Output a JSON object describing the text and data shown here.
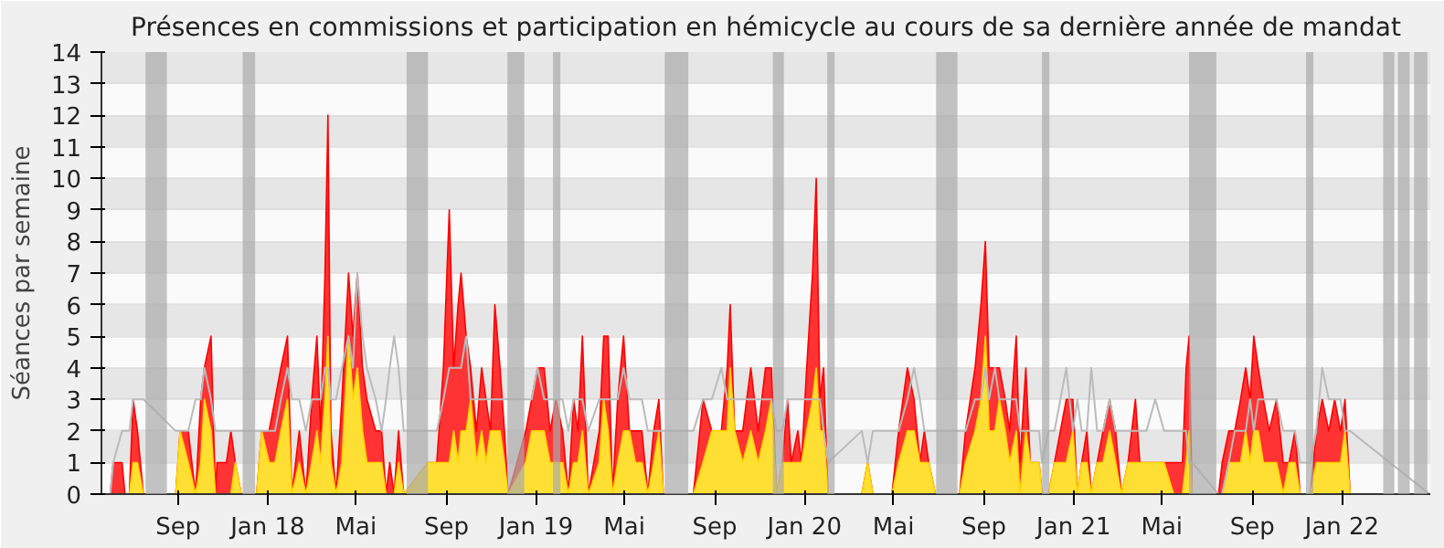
{
  "chart_data": {
    "type": "area",
    "title": "Présences en commissions et participation en hémicycle au cours de sa dernière année de mandat",
    "ylabel": "Séances par semaine",
    "x": [
      "2017-06-01",
      "2017-06-05",
      "2017-06-17",
      "2017-06-21",
      "2017-06-27",
      "2017-07-02",
      "2017-07-08",
      "2017-07-16",
      "2017-08-29",
      "2017-09-04",
      "2017-09-15",
      "2017-09-25",
      "2017-10-02",
      "2017-10-07",
      "2017-10-16",
      "2017-10-22",
      "2017-10-24",
      "2017-11-06",
      "2017-11-12",
      "2017-11-18",
      "2017-11-26",
      "2017-12-17",
      "2017-12-24",
      "2018-01-03",
      "2018-01-11",
      "2018-01-19",
      "2018-01-28",
      "2018-02-03",
      "2018-02-13",
      "2018-02-22",
      "2018-03-02",
      "2018-03-09",
      "2018-03-14",
      "2018-03-20",
      "2018-03-24",
      "2018-03-28",
      "2018-04-04",
      "2018-04-12",
      "2018-04-21",
      "2018-04-27",
      "2018-05-03",
      "2018-05-10",
      "2018-05-16",
      "2018-05-28",
      "2018-06-05",
      "2018-06-11",
      "2018-06-16",
      "2018-06-22",
      "2018-06-28",
      "2018-07-05",
      "2018-08-07",
      "2018-08-19",
      "2018-08-28",
      "2018-09-05",
      "2018-09-11",
      "2018-09-17",
      "2018-09-21",
      "2018-09-28",
      "2018-10-04",
      "2018-10-12",
      "2018-10-19",
      "2018-10-25",
      "2018-10-31",
      "2018-11-06",
      "2018-11-13",
      "2018-11-19",
      "2018-11-24",
      "2018-12-18",
      "2018-12-26",
      "2019-01-03",
      "2019-01-12",
      "2019-01-20",
      "2019-01-28",
      "2019-02-06",
      "2019-02-14",
      "2019-02-21",
      "2019-02-27",
      "2019-03-05",
      "2019-03-13",
      "2019-03-28",
      "2019-04-03",
      "2019-04-09",
      "2019-04-15",
      "2019-04-22",
      "2019-04-30",
      "2019-05-08",
      "2019-05-16",
      "2019-05-25",
      "2019-06-02",
      "2019-06-10",
      "2019-06-17",
      "2019-06-23",
      "2019-08-03",
      "2019-08-16",
      "2019-08-28",
      "2019-09-10",
      "2019-09-18",
      "2019-09-22",
      "2019-09-28",
      "2019-10-09",
      "2019-10-20",
      "2019-10-30",
      "2019-11-09",
      "2019-11-17",
      "2019-11-24",
      "2019-12-02",
      "2019-12-09",
      "2019-12-14",
      "2019-12-23",
      "2019-12-28",
      "2020-01-04",
      "2020-01-12",
      "2020-01-17",
      "2020-01-22",
      "2020-01-27",
      "2020-02-02",
      "2020-03-19",
      "2020-03-27",
      "2020-04-03",
      "2020-04-29",
      "2020-05-08",
      "2020-05-20",
      "2020-05-29",
      "2020-06-06",
      "2020-06-12",
      "2020-06-18",
      "2020-06-27",
      "2020-07-30",
      "2020-08-07",
      "2020-08-20",
      "2020-08-28",
      "2020-09-03",
      "2020-09-08",
      "2020-09-16",
      "2020-09-22",
      "2020-09-30",
      "2020-10-06",
      "2020-10-15",
      "2020-10-20",
      "2020-10-28",
      "2020-11-03",
      "2020-11-15",
      "2020-11-19",
      "2020-11-28",
      "2020-12-06",
      "2020-12-14",
      "2020-12-22",
      "2020-12-31",
      "2021-01-06",
      "2021-01-12",
      "2021-01-19",
      "2021-01-25",
      "2021-02-02",
      "2021-02-10",
      "2021-02-19",
      "2021-02-27",
      "2021-03-07",
      "2021-03-16",
      "2021-03-26",
      "2021-04-01",
      "2021-04-10",
      "2021-04-22",
      "2021-05-04",
      "2021-05-17",
      "2021-05-29",
      "2021-06-03",
      "2021-06-07",
      "2021-06-11",
      "2021-07-17",
      "2021-07-22",
      "2021-07-31",
      "2021-08-08",
      "2021-08-16",
      "2021-08-23",
      "2021-08-29",
      "2021-09-03",
      "2021-09-09",
      "2021-09-16",
      "2021-09-24",
      "2021-10-04",
      "2021-10-13",
      "2021-10-21",
      "2021-10-29",
      "2021-11-05",
      "2021-11-19",
      "2021-11-27",
      "2021-12-05",
      "2021-12-14",
      "2021-12-22",
      "2021-12-30",
      "2022-01-05",
      "2022-01-12",
      "2022-04-30"
    ],
    "series": [
      {
        "color": "#ff0000",
        "values": [
          0,
          1,
          1,
          0,
          0,
          3,
          2,
          0,
          0,
          2,
          2,
          0,
          3,
          4,
          5,
          0,
          1,
          1,
          2,
          1,
          0,
          0,
          2,
          2,
          3,
          4,
          5,
          0,
          2,
          0,
          3,
          5,
          2,
          7,
          12,
          2,
          0,
          3,
          7,
          5,
          7,
          4,
          3,
          2,
          2,
          0,
          1,
          0,
          2,
          0,
          1,
          1,
          4,
          9,
          4,
          6,
          7,
          5,
          4,
          2,
          4,
          3,
          2,
          6,
          4,
          2,
          0,
          2,
          3,
          4,
          4,
          2,
          3,
          2,
          0,
          3,
          2,
          5,
          0,
          2,
          5,
          5,
          0,
          3,
          5,
          2,
          2,
          2,
          0,
          2,
          3,
          0,
          0,
          3,
          2,
          2,
          4,
          6,
          2,
          2,
          4,
          2,
          4,
          4,
          0,
          1,
          3,
          1,
          2,
          1,
          4,
          7,
          10,
          3,
          4,
          0,
          0,
          1,
          0,
          0,
          2,
          4,
          3,
          1,
          2,
          1,
          0,
          0,
          2,
          4,
          6,
          8,
          4,
          4,
          4,
          3,
          2,
          5,
          1,
          4,
          1,
          1,
          0,
          0,
          1,
          2,
          3,
          3,
          0,
          1,
          2,
          0,
          1,
          2,
          3,
          2,
          0,
          1,
          3,
          1,
          1,
          1,
          1,
          1,
          1,
          4,
          5,
          0,
          0,
          1,
          2,
          2,
          3,
          4,
          3,
          5,
          4,
          3,
          2,
          3,
          1,
          1,
          2,
          0,
          0,
          2,
          3,
          2,
          3,
          2,
          3,
          0,
          0
        ]
      },
      {
        "color": "#ffd700",
        "values": [
          0,
          0,
          0,
          0,
          0,
          1,
          1,
          0,
          0,
          2,
          1,
          0,
          1,
          3,
          2,
          0,
          0,
          0,
          0,
          1,
          0,
          0,
          2,
          1,
          1,
          2,
          3,
          0,
          1,
          0,
          1,
          2,
          1,
          3,
          5,
          1,
          0,
          1,
          5,
          3,
          4,
          2,
          1,
          1,
          1,
          0,
          0,
          0,
          1,
          0,
          1,
          1,
          1,
          1,
          2,
          1,
          2,
          2,
          3,
          1,
          2,
          1,
          2,
          2,
          2,
          1,
          0,
          1,
          2,
          2,
          2,
          1,
          1,
          1,
          0,
          1,
          1,
          2,
          0,
          1,
          3,
          2,
          0,
          1,
          2,
          2,
          1,
          1,
          0,
          1,
          2,
          0,
          0,
          1,
          2,
          2,
          2,
          4,
          2,
          1,
          2,
          1,
          2,
          3,
          0,
          1,
          1,
          1,
          1,
          1,
          2,
          3,
          4,
          2,
          2,
          0,
          0,
          1,
          0,
          0,
          1,
          2,
          2,
          1,
          1,
          1,
          0,
          0,
          1,
          2,
          3,
          5,
          2,
          2,
          3,
          2,
          1,
          2,
          0,
          2,
          1,
          1,
          0,
          0,
          1,
          1,
          1,
          2,
          0,
          1,
          1,
          0,
          1,
          1,
          2,
          1,
          0,
          1,
          1,
          1,
          1,
          1,
          1,
          0,
          0,
          1,
          2,
          0,
          0,
          0,
          1,
          1,
          1,
          2,
          1,
          2,
          2,
          1,
          1,
          1,
          0,
          1,
          1,
          0,
          0,
          1,
          1,
          1,
          1,
          1,
          2,
          0,
          0
        ]
      },
      {
        "type": "line",
        "color": "#bbbbbb",
        "values": [
          0,
          1,
          2,
          2,
          2,
          3,
          3,
          3,
          2,
          2,
          2,
          3,
          3,
          4,
          3,
          2,
          2,
          2,
          2,
          2,
          2,
          2,
          2,
          2,
          2,
          3,
          4,
          3,
          3,
          2,
          3,
          3,
          3,
          4,
          4,
          3,
          3,
          4,
          5,
          4,
          7,
          5,
          4,
          3,
          2,
          3,
          4,
          5,
          4,
          2,
          2,
          2,
          3,
          4,
          4,
          4,
          4,
          5,
          3,
          3,
          3,
          3,
          3,
          3,
          3,
          3,
          3,
          3,
          3,
          4,
          3,
          3,
          3,
          3,
          2,
          3,
          3,
          3,
          2,
          3,
          3,
          3,
          3,
          3,
          4,
          3,
          3,
          3,
          2,
          2,
          2,
          2,
          2,
          3,
          3,
          4,
          3,
          3,
          3,
          3,
          3,
          3,
          3,
          3,
          2,
          2,
          3,
          3,
          3,
          3,
          3,
          3,
          3,
          3,
          2,
          1,
          2,
          1,
          2,
          2,
          2,
          3,
          4,
          3,
          2,
          2,
          2,
          2,
          2,
          3,
          3,
          4,
          3,
          4,
          3,
          3,
          3,
          3,
          2,
          2,
          2,
          2,
          1,
          2,
          2,
          3,
          4,
          2,
          3,
          2,
          2,
          4,
          2,
          2,
          3,
          2,
          2,
          2,
          2,
          2,
          2,
          3,
          2,
          2,
          2,
          2,
          1,
          1,
          0,
          0,
          1,
          2,
          2,
          2,
          3,
          2,
          3,
          3,
          3,
          3,
          2,
          2,
          2,
          1,
          1,
          2,
          4,
          3,
          3,
          3,
          2,
          2,
          0
        ]
      }
    ],
    "xlim": [
      "2017-05-20",
      "2022-05-01"
    ],
    "xticks": [
      {
        "value": "2017-09-01",
        "label": "Sep"
      },
      {
        "value": "2018-01-01",
        "label": "Jan 18"
      },
      {
        "value": "2018-05-01",
        "label": "Mai"
      },
      {
        "value": "2018-09-01",
        "label": "Sep"
      },
      {
        "value": "2019-01-01",
        "label": "Jan 19"
      },
      {
        "value": "2019-05-01",
        "label": "Mai"
      },
      {
        "value": "2019-09-01",
        "label": "Sep"
      },
      {
        "value": "2020-01-01",
        "label": "Jan 20"
      },
      {
        "value": "2020-05-01",
        "label": "Mai"
      },
      {
        "value": "2020-09-01",
        "label": "Sep"
      },
      {
        "value": "2021-01-01",
        "label": "Jan 21"
      },
      {
        "value": "2021-05-01",
        "label": "Mai"
      },
      {
        "value": "2021-09-01",
        "label": "Sep"
      },
      {
        "value": "2022-01-01",
        "label": "Jan 22"
      }
    ],
    "ylim": [
      0,
      14
    ],
    "yticks": [
      0,
      1,
      2,
      3,
      4,
      5,
      6,
      7,
      8,
      9,
      10,
      11,
      12,
      13,
      14
    ],
    "grid": "y",
    "bands": [
      {
        "axis": "x",
        "from": "2017-07-19",
        "to": "2017-08-17",
        "color": "#aaaaaa"
      },
      {
        "axis": "x",
        "from": "2017-11-28",
        "to": "2017-12-15",
        "color": "#aaaaaa"
      },
      {
        "axis": "x",
        "from": "2018-07-09",
        "to": "2018-08-07",
        "color": "#aaaaaa"
      },
      {
        "axis": "x",
        "from": "2018-11-23",
        "to": "2018-12-16",
        "color": "#aaaaaa"
      },
      {
        "axis": "x",
        "from": "2019-01-24",
        "to": "2019-02-03",
        "color": "#aaaaaa"
      },
      {
        "axis": "x",
        "from": "2019-06-25",
        "to": "2019-07-27",
        "color": "#aaaaaa"
      },
      {
        "axis": "x",
        "from": "2019-11-19",
        "to": "2019-12-04",
        "color": "#aaaaaa"
      },
      {
        "axis": "x",
        "from": "2020-02-01",
        "to": "2020-02-11",
        "color": "#aaaaaa"
      },
      {
        "axis": "x",
        "from": "2020-06-28",
        "to": "2020-07-27",
        "color": "#aaaaaa"
      },
      {
        "axis": "x",
        "from": "2020-11-19",
        "to": "2020-11-29",
        "color": "#aaaaaa"
      },
      {
        "axis": "x",
        "from": "2021-06-07",
        "to": "2021-07-14",
        "color": "#aaaaaa"
      },
      {
        "axis": "x",
        "from": "2021-11-13",
        "to": "2021-11-23",
        "color": "#aaaaaa"
      },
      {
        "axis": "x",
        "from": "2022-02-26",
        "to": "2022-03-13",
        "color": "#aaaaaa"
      },
      {
        "axis": "x",
        "from": "2022-03-18",
        "to": "2022-04-03",
        "color": "#aaaaaa"
      },
      {
        "axis": "x",
        "from": "2022-04-09",
        "to": "2022-04-27",
        "color": "#aaaaaa"
      }
    ]
  }
}
